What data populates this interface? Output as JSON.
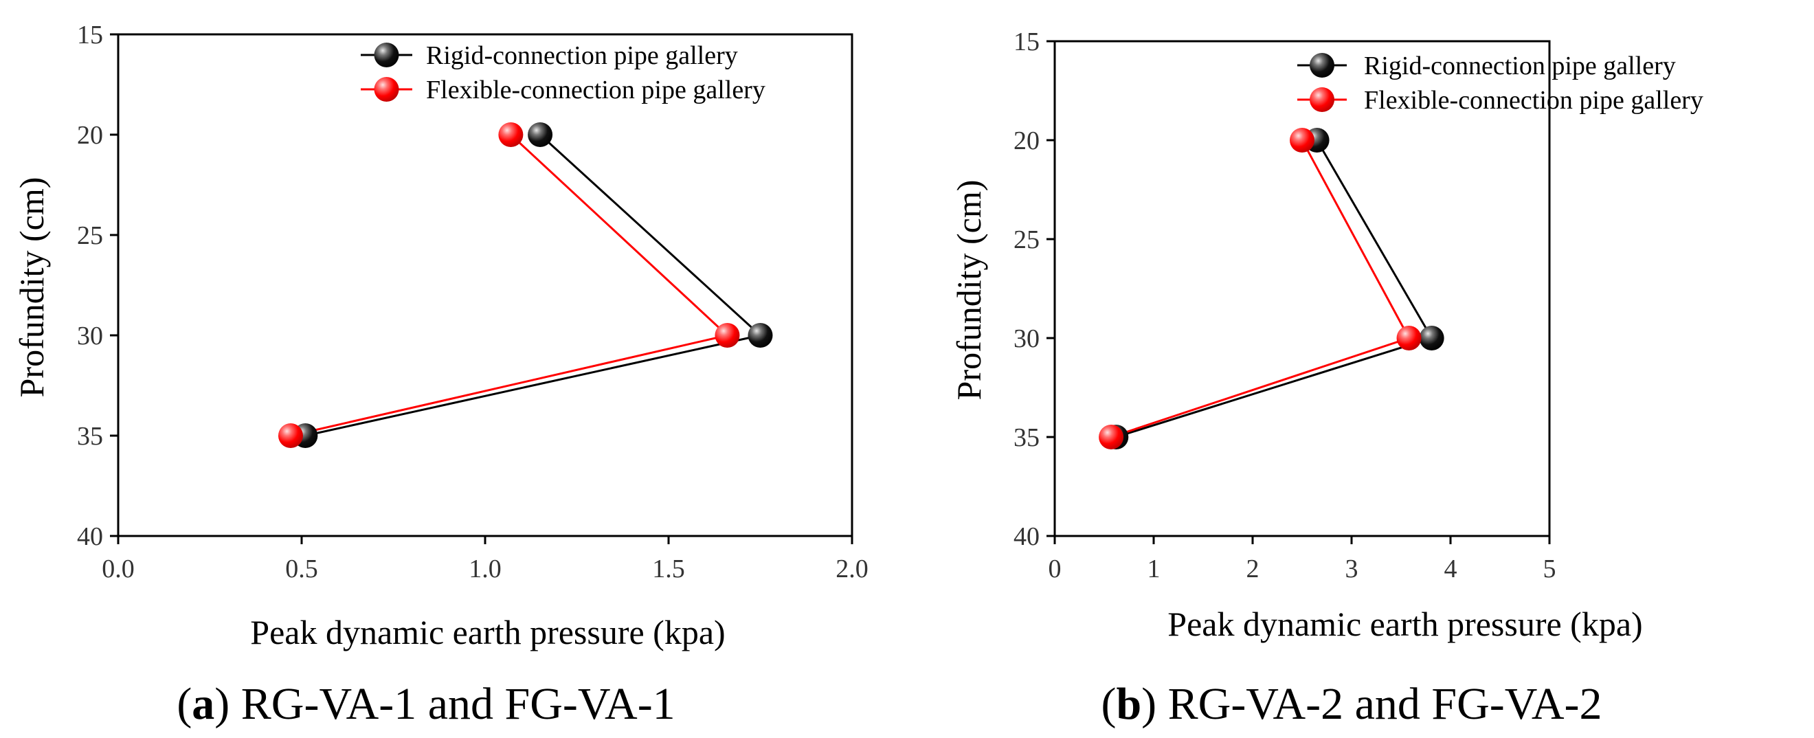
{
  "chart_data": [
    {
      "type": "line",
      "caption": {
        "open": "(",
        "letter": "a",
        "rest": ") RG-VA-1 and FG-VA-1"
      },
      "xlabel": "Peak dynamic earth pressure (kpa)",
      "ylabel": "Profundity (cm)",
      "xlim": [
        0.0,
        2.0
      ],
      "ylim": [
        15,
        40
      ],
      "y_inverted": true,
      "x_ticks": [
        "0.0",
        "0.5",
        "1.0",
        "1.5",
        "2.0"
      ],
      "y_ticks": [
        "15",
        "20",
        "25",
        "30",
        "35",
        "40"
      ],
      "grid": false,
      "legend_position": "top-right",
      "series": [
        {
          "name": "Rigid-connection pipe gallery",
          "color": "#000000",
          "marker": "sphere",
          "points": [
            {
              "x": 1.15,
              "y": 20
            },
            {
              "x": 1.75,
              "y": 30
            },
            {
              "x": 0.51,
              "y": 35
            }
          ]
        },
        {
          "name": "Flexible-connection pipe gallery",
          "color": "#ff0000",
          "marker": "sphere",
          "points": [
            {
              "x": 1.07,
              "y": 20
            },
            {
              "x": 1.66,
              "y": 30
            },
            {
              "x": 0.47,
              "y": 35
            }
          ]
        }
      ]
    },
    {
      "type": "line",
      "caption": {
        "open": "(",
        "letter": "b",
        "rest": ") RG-VA-2 and FG-VA-2"
      },
      "xlabel": "Peak dynamic earth pressure (kpa)",
      "ylabel": "Profundity (cm)",
      "xlim": [
        0,
        5
      ],
      "ylim": [
        15,
        40
      ],
      "y_inverted": true,
      "x_ticks": [
        "0",
        "1",
        "2",
        "3",
        "4",
        "5"
      ],
      "y_ticks": [
        "15",
        "20",
        "25",
        "30",
        "35",
        "40"
      ],
      "grid": false,
      "legend_position": "top-right",
      "series": [
        {
          "name": "Rigid-connection pipe gallery",
          "color": "#000000",
          "marker": "sphere",
          "points": [
            {
              "x": 2.65,
              "y": 20
            },
            {
              "x": 3.81,
              "y": 30
            },
            {
              "x": 0.62,
              "y": 35
            }
          ]
        },
        {
          "name": "Flexible-connection pipe gallery",
          "color": "#ff0000",
          "marker": "sphere",
          "points": [
            {
              "x": 2.5,
              "y": 20
            },
            {
              "x": 3.58,
              "y": 30
            },
            {
              "x": 0.57,
              "y": 35
            }
          ]
        }
      ]
    }
  ]
}
